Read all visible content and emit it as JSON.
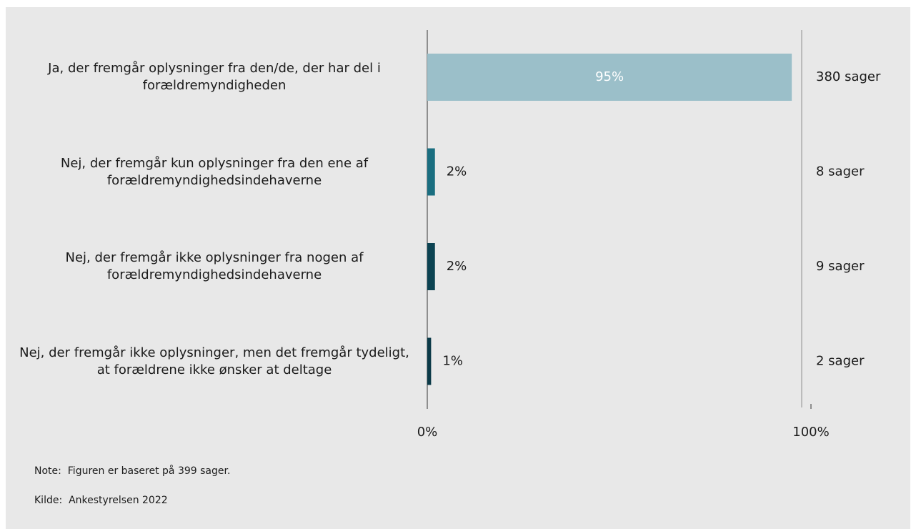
{
  "chart_data": {
    "type": "bar",
    "orientation": "horizontal",
    "categories": [
      "Ja, der fremgår oplysninger fra den/de, der har del i forældremyndigheden",
      "Nej, der fremgår kun oplysninger fra den ene af forældremyndighedsindehaverne",
      "Nej, der fremgår ikke oplysninger fra nogen af forældremyndighedsindehaverne",
      "Nej, der fremgår ikke oplysninger, men det fremgår tydeligt, at forældrene ikke ønsker at deltage"
    ],
    "values": [
      95,
      2,
      2,
      1
    ],
    "value_labels": [
      "95%",
      "2%",
      "2%",
      "1%"
    ],
    "colors": [
      "#9bbfc9",
      "#1a6e80",
      "#0c4352",
      "#0b3a48"
    ],
    "annotations": [
      "380 sager",
      "8 sager",
      "9 sager",
      "2 sager"
    ],
    "xlim": [
      0,
      100
    ],
    "xticks": [
      {
        "value": 0,
        "label": "0%"
      },
      {
        "value": 100,
        "label": "100%"
      }
    ],
    "note_label": "Note:",
    "note": "Figuren er baseret på 399 sager.",
    "source_label": "Kilde:",
    "source": "Ankestyrelsen 2022"
  }
}
